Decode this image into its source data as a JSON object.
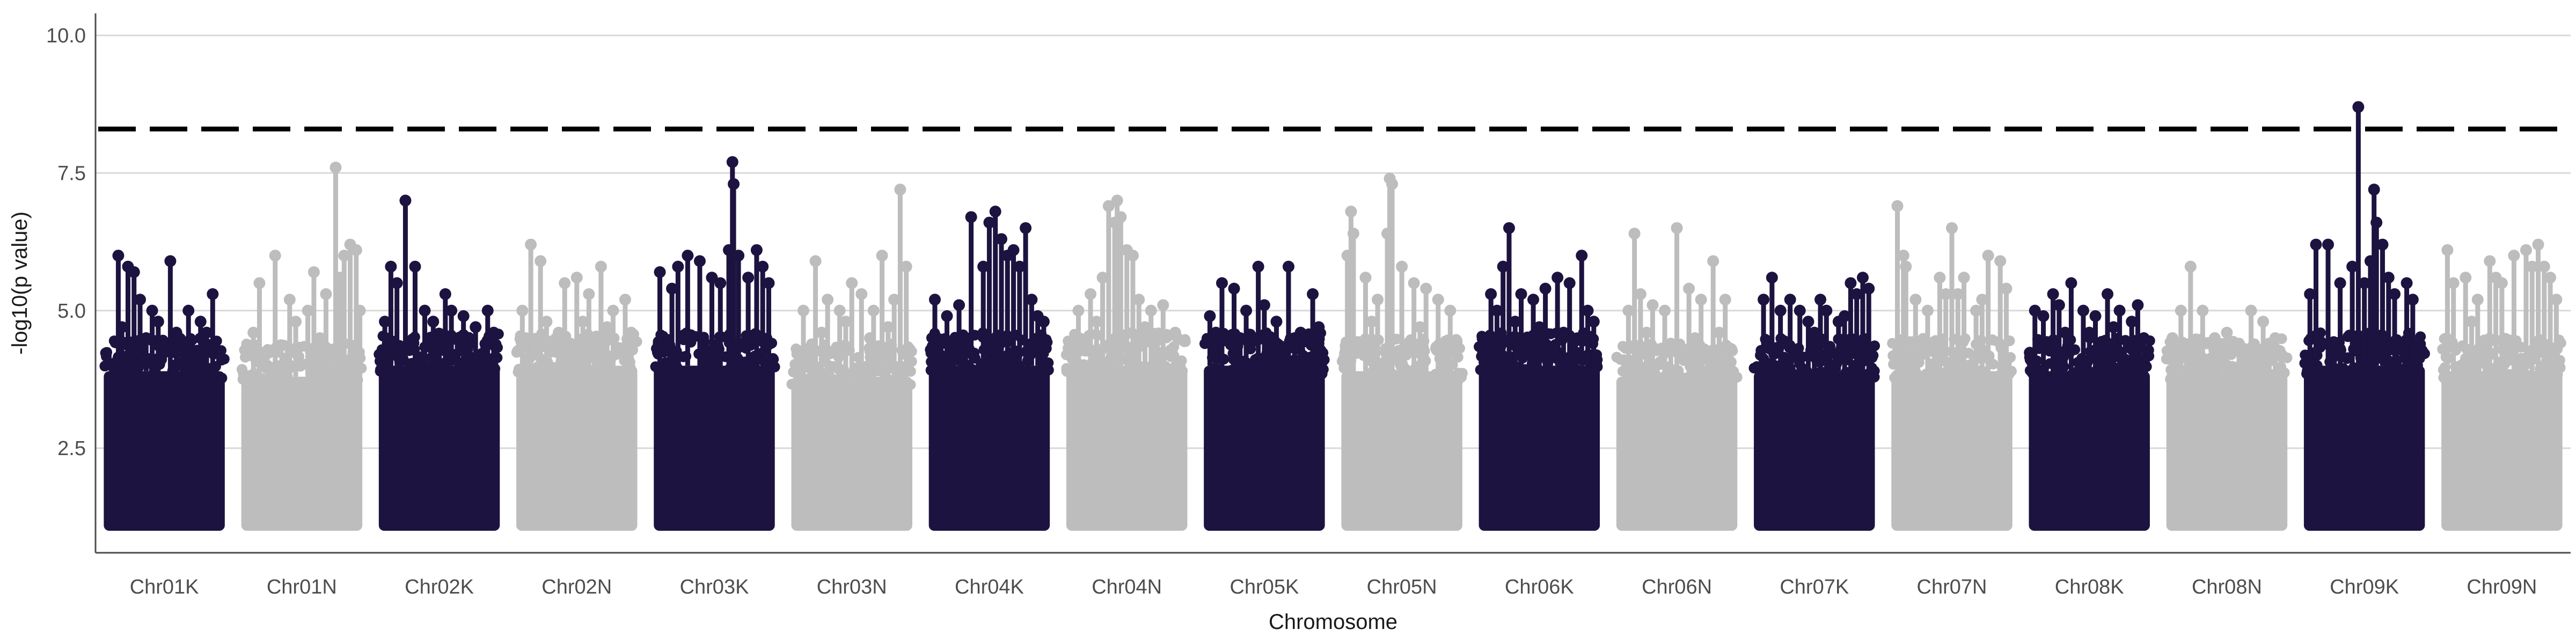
{
  "chart_data": {
    "type": "scatter",
    "subtype": "manhattan",
    "xlabel": "Chromosome",
    "ylabel": "-log10(p value)",
    "ylim": [
      0.6,
      10.4
    ],
    "yticks": [
      2.5,
      5.0,
      7.5,
      10.0
    ],
    "ytick_labels": [
      "2.5",
      "5.0",
      "7.5",
      "10.0"
    ],
    "grid": "horizontal-major",
    "legend": "none",
    "threshold": 8.3,
    "colors": {
      "K": "#1d1340",
      "N": "#bdbdbd"
    },
    "categories": [
      "Chr01K",
      "Chr01N",
      "Chr02K",
      "Chr02N",
      "Chr03K",
      "Chr03N",
      "Chr04K",
      "Chr04N",
      "Chr05K",
      "Chr05N",
      "Chr06K",
      "Chr06N",
      "Chr07K",
      "Chr07N",
      "Chr08K",
      "Chr08N",
      "Chr09K",
      "Chr09N"
    ],
    "dense_min": 1.0,
    "dense_max": [
      3.9,
      3.8,
      4.0,
      4.0,
      4.0,
      3.8,
      4.0,
      4.0,
      4.0,
      3.9,
      4.0,
      3.8,
      3.9,
      3.9,
      3.9,
      3.9,
      4.0,
      3.9
    ],
    "peaks": [
      [
        [
          0.12,
          6.0
        ],
        [
          0.2,
          5.8
        ],
        [
          0.25,
          5.7
        ],
        [
          0.3,
          5.2
        ],
        [
          0.4,
          5.0
        ],
        [
          0.45,
          4.8
        ],
        [
          0.55,
          5.9
        ],
        [
          0.6,
          4.6
        ],
        [
          0.7,
          5.0
        ],
        [
          0.8,
          4.8
        ],
        [
          0.9,
          5.3
        ],
        [
          0.15,
          4.7
        ],
        [
          0.35,
          4.5
        ],
        [
          0.65,
          4.4
        ],
        [
          0.85,
          4.6
        ]
      ],
      [
        [
          0.15,
          5.5
        ],
        [
          0.28,
          6.0
        ],
        [
          0.4,
          5.2
        ],
        [
          0.55,
          5.0
        ],
        [
          0.6,
          5.7
        ],
        [
          0.7,
          5.3
        ],
        [
          0.78,
          7.6
        ],
        [
          0.82,
          5.6
        ],
        [
          0.85,
          6.0
        ],
        [
          0.9,
          6.2
        ],
        [
          0.95,
          6.1
        ],
        [
          0.1,
          4.6
        ],
        [
          0.45,
          4.8
        ],
        [
          0.65,
          4.5
        ],
        [
          0.98,
          5.0
        ]
      ],
      [
        [
          0.1,
          5.8
        ],
        [
          0.15,
          5.5
        ],
        [
          0.22,
          7.0
        ],
        [
          0.3,
          5.8
        ],
        [
          0.38,
          5.0
        ],
        [
          0.45,
          4.8
        ],
        [
          0.55,
          5.3
        ],
        [
          0.6,
          5.0
        ],
        [
          0.7,
          4.9
        ],
        [
          0.8,
          4.7
        ],
        [
          0.9,
          5.0
        ],
        [
          0.95,
          4.6
        ],
        [
          0.05,
          4.8
        ],
        [
          0.5,
          4.5
        ],
        [
          0.75,
          4.4
        ]
      ],
      [
        [
          0.12,
          6.2
        ],
        [
          0.2,
          5.9
        ],
        [
          0.4,
          5.5
        ],
        [
          0.5,
          5.6
        ],
        [
          0.6,
          5.3
        ],
        [
          0.7,
          5.8
        ],
        [
          0.8,
          5.0
        ],
        [
          0.9,
          5.2
        ],
        [
          0.25,
          4.8
        ],
        [
          0.35,
          4.6
        ],
        [
          0.55,
          4.8
        ],
        [
          0.75,
          4.7
        ],
        [
          0.05,
          5.0
        ],
        [
          0.65,
          4.5
        ],
        [
          0.95,
          4.6
        ]
      ],
      [
        [
          0.05,
          5.7
        ],
        [
          0.15,
          5.4
        ],
        [
          0.2,
          5.8
        ],
        [
          0.28,
          6.0
        ],
        [
          0.38,
          5.9
        ],
        [
          0.48,
          5.6
        ],
        [
          0.55,
          5.5
        ],
        [
          0.62,
          6.1
        ],
        [
          0.65,
          7.7
        ],
        [
          0.66,
          7.3
        ],
        [
          0.7,
          6.0
        ],
        [
          0.78,
          5.6
        ],
        [
          0.85,
          6.1
        ],
        [
          0.9,
          5.8
        ],
        [
          0.95,
          5.5
        ]
      ],
      [
        [
          0.1,
          5.0
        ],
        [
          0.2,
          5.9
        ],
        [
          0.3,
          5.2
        ],
        [
          0.4,
          5.0
        ],
        [
          0.5,
          5.5
        ],
        [
          0.58,
          5.3
        ],
        [
          0.68,
          5.0
        ],
        [
          0.75,
          6.0
        ],
        [
          0.85,
          5.2
        ],
        [
          0.9,
          7.2
        ],
        [
          0.95,
          5.8
        ],
        [
          0.25,
          4.6
        ],
        [
          0.45,
          4.8
        ],
        [
          0.65,
          4.5
        ],
        [
          0.8,
          4.7
        ]
      ],
      [
        [
          0.05,
          5.2
        ],
        [
          0.15,
          4.9
        ],
        [
          0.25,
          5.1
        ],
        [
          0.35,
          6.7
        ],
        [
          0.45,
          5.8
        ],
        [
          0.5,
          6.6
        ],
        [
          0.55,
          6.8
        ],
        [
          0.6,
          6.3
        ],
        [
          0.65,
          6.0
        ],
        [
          0.7,
          6.1
        ],
        [
          0.75,
          5.8
        ],
        [
          0.8,
          6.5
        ],
        [
          0.85,
          5.2
        ],
        [
          0.9,
          4.9
        ],
        [
          0.95,
          4.8
        ]
      ],
      [
        [
          0.1,
          5.0
        ],
        [
          0.2,
          5.3
        ],
        [
          0.3,
          5.6
        ],
        [
          0.35,
          6.9
        ],
        [
          0.4,
          6.6
        ],
        [
          0.42,
          7.0
        ],
        [
          0.45,
          6.7
        ],
        [
          0.5,
          6.1
        ],
        [
          0.55,
          6.0
        ],
        [
          0.6,
          5.2
        ],
        [
          0.7,
          5.0
        ],
        [
          0.8,
          5.1
        ],
        [
          0.25,
          4.8
        ],
        [
          0.65,
          4.7
        ],
        [
          0.9,
          4.6
        ]
      ],
      [
        [
          0.05,
          4.9
        ],
        [
          0.15,
          5.5
        ],
        [
          0.25,
          5.4
        ],
        [
          0.35,
          5.0
        ],
        [
          0.45,
          5.8
        ],
        [
          0.5,
          5.1
        ],
        [
          0.6,
          4.8
        ],
        [
          0.7,
          5.8
        ],
        [
          0.8,
          4.6
        ],
        [
          0.9,
          5.3
        ],
        [
          0.95,
          4.7
        ],
        [
          0.3,
          4.5
        ],
        [
          0.55,
          4.4
        ],
        [
          0.75,
          4.5
        ],
        [
          0.1,
          4.6
        ]
      ],
      [
        [
          0.05,
          6.0
        ],
        [
          0.08,
          6.8
        ],
        [
          0.1,
          6.4
        ],
        [
          0.2,
          5.6
        ],
        [
          0.3,
          5.2
        ],
        [
          0.38,
          6.4
        ],
        [
          0.4,
          7.4
        ],
        [
          0.42,
          7.3
        ],
        [
          0.5,
          5.8
        ],
        [
          0.6,
          5.5
        ],
        [
          0.7,
          5.4
        ],
        [
          0.8,
          5.2
        ],
        [
          0.9,
          5.0
        ],
        [
          0.25,
          4.8
        ],
        [
          0.65,
          4.7
        ]
      ],
      [
        [
          0.1,
          5.3
        ],
        [
          0.15,
          5.0
        ],
        [
          0.2,
          5.8
        ],
        [
          0.25,
          6.5
        ],
        [
          0.35,
          5.3
        ],
        [
          0.45,
          5.2
        ],
        [
          0.55,
          5.4
        ],
        [
          0.65,
          5.6
        ],
        [
          0.75,
          5.5
        ],
        [
          0.85,
          6.0
        ],
        [
          0.9,
          5.0
        ],
        [
          0.3,
          4.8
        ],
        [
          0.5,
          4.7
        ],
        [
          0.7,
          4.6
        ],
        [
          0.95,
          4.8
        ]
      ],
      [
        [
          0.1,
          5.0
        ],
        [
          0.15,
          6.4
        ],
        [
          0.2,
          5.3
        ],
        [
          0.3,
          5.1
        ],
        [
          0.4,
          5.0
        ],
        [
          0.5,
          6.5
        ],
        [
          0.6,
          5.4
        ],
        [
          0.7,
          5.2
        ],
        [
          0.8,
          5.9
        ],
        [
          0.9,
          5.2
        ],
        [
          0.25,
          4.6
        ],
        [
          0.45,
          4.4
        ],
        [
          0.65,
          4.5
        ],
        [
          0.85,
          4.6
        ],
        [
          0.95,
          4.3
        ]
      ],
      [
        [
          0.08,
          5.2
        ],
        [
          0.15,
          5.6
        ],
        [
          0.22,
          5.0
        ],
        [
          0.3,
          5.2
        ],
        [
          0.38,
          5.0
        ],
        [
          0.45,
          4.8
        ],
        [
          0.55,
          5.2
        ],
        [
          0.6,
          5.0
        ],
        [
          0.7,
          4.8
        ],
        [
          0.75,
          4.9
        ],
        [
          0.8,
          5.5
        ],
        [
          0.85,
          5.3
        ],
        [
          0.9,
          5.6
        ],
        [
          0.95,
          5.4
        ],
        [
          0.5,
          4.6
        ]
      ],
      [
        [
          0.05,
          6.9
        ],
        [
          0.1,
          6.0
        ],
        [
          0.12,
          5.8
        ],
        [
          0.2,
          5.2
        ],
        [
          0.3,
          5.0
        ],
        [
          0.4,
          5.6
        ],
        [
          0.45,
          5.3
        ],
        [
          0.5,
          6.5
        ],
        [
          0.55,
          5.3
        ],
        [
          0.6,
          5.6
        ],
        [
          0.7,
          5.0
        ],
        [
          0.75,
          5.2
        ],
        [
          0.8,
          6.0
        ],
        [
          0.9,
          5.9
        ],
        [
          0.95,
          5.4
        ]
      ],
      [
        [
          0.05,
          5.0
        ],
        [
          0.12,
          4.9
        ],
        [
          0.2,
          5.3
        ],
        [
          0.25,
          5.1
        ],
        [
          0.35,
          5.5
        ],
        [
          0.45,
          5.0
        ],
        [
          0.55,
          4.9
        ],
        [
          0.65,
          5.3
        ],
        [
          0.75,
          5.0
        ],
        [
          0.85,
          4.8
        ],
        [
          0.9,
          5.1
        ],
        [
          0.3,
          4.6
        ],
        [
          0.5,
          4.6
        ],
        [
          0.7,
          4.7
        ],
        [
          0.95,
          4.5
        ]
      ],
      [
        [
          0.05,
          4.5
        ],
        [
          0.12,
          5.0
        ],
        [
          0.2,
          5.8
        ],
        [
          0.3,
          5.0
        ],
        [
          0.4,
          4.5
        ],
        [
          0.5,
          4.6
        ],
        [
          0.6,
          4.4
        ],
        [
          0.7,
          5.0
        ],
        [
          0.8,
          4.8
        ],
        [
          0.9,
          4.5
        ],
        [
          0.25,
          4.3
        ],
        [
          0.45,
          4.2
        ],
        [
          0.65,
          4.3
        ],
        [
          0.85,
          4.4
        ],
        [
          0.95,
          4.2
        ]
      ],
      [
        [
          0.05,
          5.3
        ],
        [
          0.1,
          6.2
        ],
        [
          0.2,
          6.2
        ],
        [
          0.3,
          5.5
        ],
        [
          0.4,
          5.8
        ],
        [
          0.45,
          8.7
        ],
        [
          0.5,
          5.5
        ],
        [
          0.55,
          5.9
        ],
        [
          0.58,
          7.2
        ],
        [
          0.6,
          6.6
        ],
        [
          0.65,
          6.2
        ],
        [
          0.7,
          5.6
        ],
        [
          0.75,
          5.3
        ],
        [
          0.85,
          5.5
        ],
        [
          0.9,
          5.2
        ]
      ],
      [
        [
          0.05,
          6.1
        ],
        [
          0.1,
          5.5
        ],
        [
          0.2,
          5.6
        ],
        [
          0.3,
          5.2
        ],
        [
          0.4,
          5.9
        ],
        [
          0.45,
          5.6
        ],
        [
          0.5,
          5.5
        ],
        [
          0.6,
          6.0
        ],
        [
          0.7,
          6.1
        ],
        [
          0.75,
          5.8
        ],
        [
          0.8,
          6.2
        ],
        [
          0.85,
          5.8
        ],
        [
          0.9,
          5.6
        ],
        [
          0.95,
          5.2
        ],
        [
          0.25,
          4.8
        ]
      ]
    ]
  }
}
